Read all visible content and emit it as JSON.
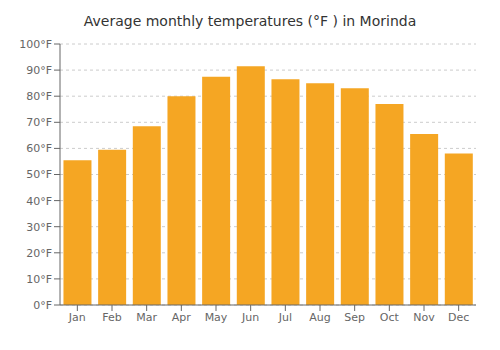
{
  "chart_data": {
    "type": "bar",
    "title": "Average monthly temperatures (°F ) in Morinda",
    "categories": [
      "Jan",
      "Feb",
      "Mar",
      "Apr",
      "May",
      "Jun",
      "Jul",
      "Aug",
      "Sep",
      "Oct",
      "Nov",
      "Dec"
    ],
    "values": [
      55.5,
      59.5,
      68.5,
      80.0,
      87.5,
      91.5,
      86.5,
      85.0,
      83.0,
      77.0,
      65.5,
      58.0
    ],
    "color": "#F5A623",
    "ylim": [
      0,
      100
    ],
    "yticks": [
      {
        "value": 0,
        "label": "0°F"
      },
      {
        "value": 10,
        "label": "10°F"
      },
      {
        "value": 20,
        "label": "20°F"
      },
      {
        "value": 30,
        "label": "30°F"
      },
      {
        "value": 40,
        "label": "40°F"
      },
      {
        "value": 50,
        "label": "50°F"
      },
      {
        "value": 60,
        "label": "60°F"
      },
      {
        "value": 70,
        "label": "70°F"
      },
      {
        "value": 80,
        "label": "80°F"
      },
      {
        "value": 90,
        "label": "90°F"
      },
      {
        "value": 100,
        "label": "100°F"
      }
    ],
    "grid": true
  }
}
